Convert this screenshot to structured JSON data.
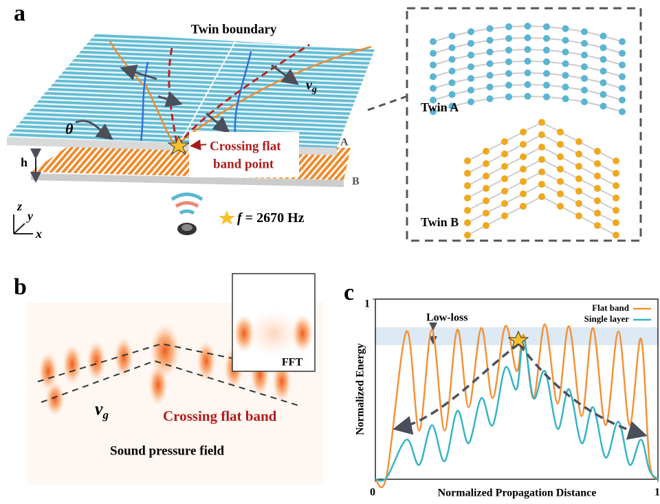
{
  "panel_a": {
    "label": "a",
    "title": "Twin boundary",
    "group_velocity": {
      "symbol": "v",
      "subscript": "g"
    },
    "angle": "θ",
    "crossing": [
      "Crossing flat",
      "band point"
    ],
    "layer_a": "A",
    "layer_b": "B",
    "spacing": "h",
    "axes": {
      "z": "z",
      "y": "y",
      "x": "x"
    },
    "frequency": {
      "symbol": "f",
      "text": "= 2670 Hz"
    },
    "inset": {
      "twin_a": "Twin A",
      "twin_b": "Twin B"
    }
  },
  "panel_b": {
    "label": "b",
    "fft": "FFT",
    "group_velocity": {
      "symbol": "v",
      "subscript": "g"
    },
    "crossing": "Crossing flat band",
    "field": "Sound pressure field"
  },
  "chart_data": {
    "type": "line",
    "panel_label": "c",
    "xlabel": "Normalized Propagation Distance",
    "ylabel": "Normalized Energy",
    "annotation": "Low-loss",
    "legend": "upper right",
    "x": [
      0,
      0.04,
      0.11,
      0.155,
      0.2,
      0.245,
      0.29,
      0.33,
      0.375,
      0.415,
      0.46,
      0.5,
      0.525,
      0.56,
      0.6,
      0.645,
      0.685,
      0.73,
      0.77,
      0.815,
      0.86,
      0.9,
      0.94,
      0.97,
      1
    ],
    "series": [
      {
        "name": "Flat band",
        "color": "#f39236",
        "values": [
          0,
          0.02,
          0.82,
          0.27,
          0.83,
          0.27,
          0.83,
          0.4,
          0.84,
          0.45,
          0.85,
          0.6,
          0.8,
          0.45,
          0.86,
          0.42,
          0.85,
          0.35,
          0.84,
          0.3,
          0.82,
          0.3,
          0.78,
          0.1,
          0
        ]
      },
      {
        "name": "Single layer",
        "color": "#35b4c4",
        "values": [
          0,
          0.01,
          0.22,
          0.08,
          0.3,
          0.1,
          0.38,
          0.2,
          0.45,
          0.3,
          0.62,
          0.5,
          0.78,
          0.45,
          0.6,
          0.28,
          0.5,
          0.2,
          0.4,
          0.12,
          0.32,
          0.08,
          0.22,
          0.05,
          0
        ]
      }
    ],
    "xlim": [
      0,
      1
    ],
    "ylim": [
      0,
      1
    ],
    "xticks": [
      0,
      1
    ],
    "yticks": [
      1
    ]
  }
}
